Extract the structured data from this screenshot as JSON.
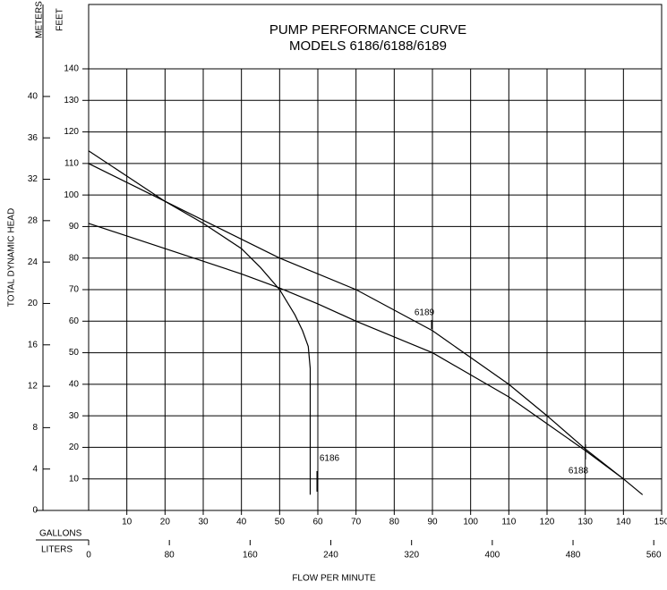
{
  "chart_data": {
    "type": "line",
    "title": "PUMP PERFORMANCE CURVE",
    "subtitle": "MODELS 6186/6188/6189",
    "x_label": "FLOW PER MINUTE",
    "y_label": "TOTAL DYNAMIC HEAD",
    "x_unit": "GALLONS",
    "x2_unit": "LITERS",
    "y_unit": "FEET",
    "y2_unit": "METERS",
    "xlim": [
      0,
      150
    ],
    "xticks": [
      10,
      20,
      30,
      40,
      50,
      60,
      70,
      80,
      90,
      100,
      110,
      120,
      130,
      140,
      150
    ],
    "x2lim": [
      0,
      567.8
    ],
    "x2ticks": [
      0,
      80,
      160,
      240,
      320,
      400,
      480,
      560
    ],
    "ylim": [
      0,
      140
    ],
    "yticks": [
      10,
      20,
      30,
      40,
      50,
      60,
      70,
      80,
      90,
      100,
      110,
      120,
      130,
      140
    ],
    "y2lim": [
      0,
      42.67
    ],
    "y2ticks": [
      0,
      4,
      8,
      12,
      16,
      20,
      24,
      28,
      32,
      36,
      40
    ],
    "grid": true,
    "series": [
      {
        "name": "6189",
        "color": "#000000",
        "x": [
          0,
          20,
          50,
          70,
          90,
          110,
          120,
          130,
          140,
          145
        ],
        "values": [
          110,
          98,
          80,
          70,
          57,
          40,
          30,
          19.5,
          10,
          5
        ]
      },
      {
        "name": "6186",
        "color": "#000000",
        "x": [
          0,
          10,
          20,
          30,
          40,
          45,
          50,
          54,
          56,
          57.5,
          58,
          58
        ],
        "values": [
          114,
          106,
          98,
          91,
          83,
          77,
          70,
          62,
          57,
          52,
          45,
          5
        ]
      },
      {
        "name": "6188",
        "color": "#000000",
        "x": [
          0,
          20,
          40,
          50,
          60,
          70,
          90,
          110,
          120,
          130,
          140
        ],
        "values": [
          91,
          83,
          75,
          70.5,
          65.5,
          60,
          50,
          36,
          27.5,
          19,
          10
        ]
      }
    ]
  }
}
